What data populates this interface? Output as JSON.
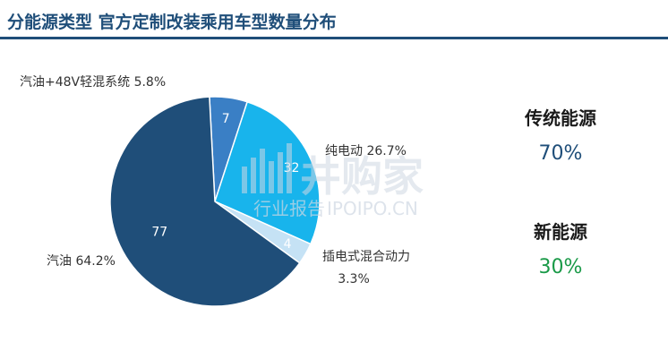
{
  "title": "分能源类型 官方定制改装乘用车型数量分布",
  "chart_data": {
    "type": "pie",
    "slices": [
      {
        "name": "汽油",
        "value": 77,
        "percent": "64.2%",
        "color": "#1f4e79",
        "label": "汽油 64.2%"
      },
      {
        "name": "汽油+48V轻混系统",
        "value": 7,
        "percent": "5.8%",
        "color": "#3a7fc5",
        "label": "汽油+48V轻混系统 5.8%"
      },
      {
        "name": "纯电动",
        "value": 32,
        "percent": "26.7%",
        "color": "#18b4ec",
        "label": "纯电动 26.7%"
      },
      {
        "name": "插电式混合动力",
        "value": 4,
        "percent": "3.3%",
        "color": "#c5e2f5",
        "label_line1": "插电式混合动力",
        "label_line2": "3.3%"
      }
    ]
  },
  "summary": [
    {
      "label": "传统能源",
      "value": "70%",
      "color": "#1f4e79"
    },
    {
      "label": "新能源",
      "value": "30%",
      "color": "#1a9a48"
    }
  ],
  "watermark": {
    "brand": "井购家",
    "sub": "行业报告",
    "site": "IPOIPO.CN"
  }
}
